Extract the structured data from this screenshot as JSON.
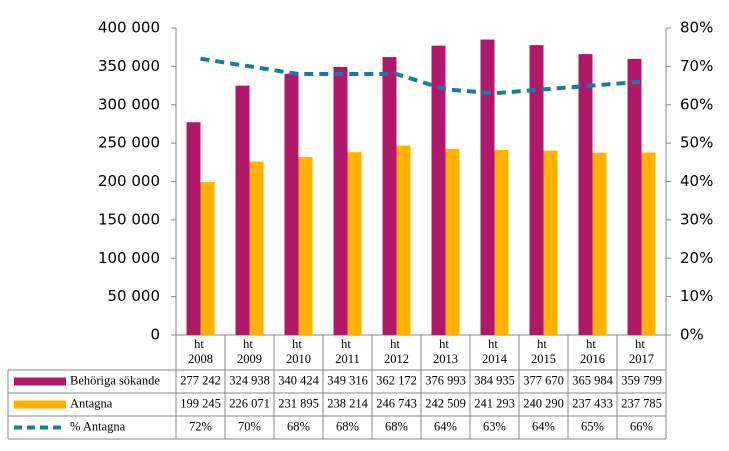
{
  "chart_data": {
    "type": "bar-line",
    "categories": [
      "ht 2008",
      "ht 2009",
      "ht 2010",
      "ht 2011",
      "ht 2012",
      "ht 2013",
      "ht 2014",
      "ht 2015",
      "ht 2016",
      "ht 2017"
    ],
    "series": [
      {
        "name": "Behöriga sökande",
        "color": "#b0186a",
        "type": "bar",
        "values": [
          277242,
          324938,
          340424,
          349316,
          362172,
          376993,
          384935,
          377670,
          365984,
          359799
        ],
        "value_labels": [
          "277 242",
          "324 938",
          "340 424",
          "349 316",
          "362 172",
          "376 993",
          "384 935",
          "377 670",
          "365 984",
          "359 799"
        ]
      },
      {
        "name": "Antagna",
        "color": "#ffb000",
        "type": "bar",
        "values": [
          199245,
          226071,
          231895,
          238214,
          246743,
          242509,
          241293,
          240290,
          237433,
          237785
        ],
        "value_labels": [
          "199 245",
          "226 071",
          "231 895",
          "238 214",
          "246 743",
          "242 509",
          "241 293",
          "240 290",
          "237 433",
          "237 785"
        ]
      },
      {
        "name": "% Antagna",
        "color": "#1c7b9c",
        "type": "line",
        "axis": "y2",
        "values": [
          72,
          70,
          68,
          68,
          68,
          64,
          63,
          64,
          65,
          66
        ],
        "value_labels": [
          "72%",
          "70%",
          "68%",
          "68%",
          "68%",
          "64%",
          "63%",
          "64%",
          "65%",
          "66%"
        ]
      }
    ],
    "ylim": [
      0,
      400000
    ],
    "yticks": [
      0,
      {
        "value": 50000,
        "label": "50 000"
      },
      {
        "value": 100000,
        "label": "100 000"
      },
      {
        "value": 150000,
        "label": "150 000"
      },
      {
        "value": 200000,
        "label": "200 000"
      },
      {
        "value": 250000,
        "label": "250 000"
      },
      {
        "value": 300000,
        "label": "300 000"
      },
      {
        "value": 350000,
        "label": "350 000"
      },
      {
        "value": 400000,
        "label": "400 000"
      }
    ],
    "y2lim": [
      0,
      80
    ],
    "y2ticks": [
      {
        "value": 0,
        "label": "0%"
      },
      {
        "value": 10,
        "label": "10%"
      },
      {
        "value": 20,
        "label": "20%"
      },
      {
        "value": 30,
        "label": "30%"
      },
      {
        "value": 40,
        "label": "40%"
      },
      {
        "value": 50,
        "label": "50%"
      },
      {
        "value": 60,
        "label": "60%"
      },
      {
        "value": 70,
        "label": "70%"
      },
      {
        "value": 80,
        "label": "80%"
      }
    ],
    "grid": false
  }
}
